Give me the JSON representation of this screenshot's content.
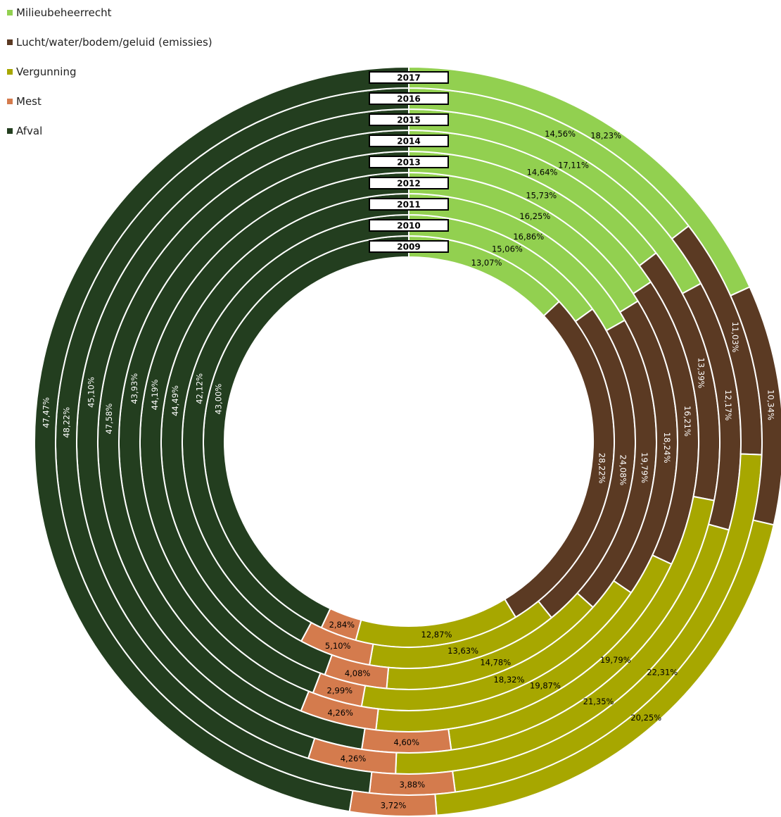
{
  "chart_data": {
    "type": "pie",
    "subtype": "multi-ring donut",
    "direction": "clockwise from top",
    "legend": {
      "placement": "top-left"
    },
    "categories": [
      "Milieubeheerrecht",
      "Lucht/water/bodem/geluid (emissies)",
      "Vergunning",
      "Mest",
      "Afval"
    ],
    "colors": [
      "#92d050",
      "#5b3a23",
      "#a7a700",
      "#d47b4d",
      "#233e1f"
    ],
    "label_colors": [
      "#000000",
      "#ffffff",
      "#000000",
      "#000000",
      "#ffffff"
    ],
    "rings": [
      {
        "year": "2009",
        "values": [
          13.07,
          28.22,
          12.87,
          2.84,
          43.0
        ],
        "labels": [
          "13,07%",
          "28,22%",
          "12,87%",
          "2,84%",
          "43,00%"
        ]
      },
      {
        "year": "2010",
        "values": [
          15.06,
          24.08,
          13.63,
          5.1,
          42.12
        ],
        "labels": [
          "15,06%",
          "24,08%",
          "13,63%",
          "5,10%",
          "42,12%"
        ]
      },
      {
        "year": "2011",
        "values": [
          16.86,
          19.79,
          14.78,
          4.08,
          44.49
        ],
        "labels": [
          "16,86%",
          "19,79%",
          "14,78%",
          "4,08%",
          "44,49%"
        ]
      },
      {
        "year": "2012",
        "values": [
          16.25,
          18.24,
          18.32,
          2.99,
          44.19
        ],
        "labels": [
          "16,25%",
          "18,24%",
          "18,32%",
          "2,99%",
          "44,19%"
        ]
      },
      {
        "year": "2013",
        "values": [
          15.73,
          16.21,
          19.87,
          4.26,
          43.93
        ],
        "labels": [
          "15,73%",
          "16,21%",
          "19,87%",
          "4,26%",
          "43,93%"
        ]
      },
      {
        "year": "2014",
        "values": [
          14.64,
          13.39,
          19.79,
          4.6,
          47.58
        ],
        "labels": [
          "14,64%",
          "13,39%",
          "19,79%",
          "4,60%",
          "47,58%"
        ]
      },
      {
        "year": "2015",
        "values": [
          17.11,
          12.17,
          21.35,
          4.26,
          45.1
        ],
        "labels": [
          "17,11%",
          "12,17%",
          "21,35%",
          "4,26%",
          "45,10%"
        ]
      },
      {
        "year": "2016",
        "values": [
          14.56,
          11.03,
          22.31,
          3.88,
          48.22
        ],
        "labels": [
          "14,56%",
          "11,03%",
          "22,31%",
          "3,88%",
          "48,22%"
        ]
      },
      {
        "year": "2017",
        "values": [
          18.23,
          10.34,
          20.25,
          3.72,
          47.47
        ],
        "labels": [
          "18,23%",
          "10,34%",
          "20,25%",
          "3,72%",
          "47,47%"
        ]
      }
    ]
  }
}
